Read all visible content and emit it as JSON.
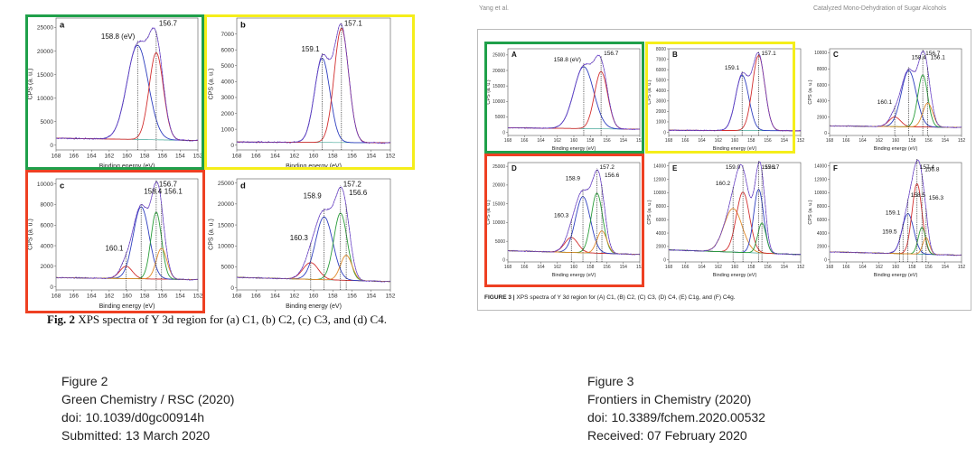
{
  "left_figure": {
    "caption_label": "Fig. 2",
    "caption_text": "XPS spectra of Y 3d region for (a) C1, (b) C2, (c) C3, and (d) C4."
  },
  "right_figure": {
    "header_left": "Yang et al.",
    "header_right": "Catalyzed Mono-Dehydration of Sugar Alcohols",
    "caption_label": "FIGURE 3 |",
    "caption_text": "XPS spectra of Y 3d region for (A) C1, (B) C2, (C) C3, (D) C4, (E) C1g, and (F) C4g."
  },
  "meta_left": {
    "line1": "Figure 2",
    "line2": "Green Chemistry / RSC (2020)",
    "line3": "doi: 10.1039/d0gc00914h",
    "line4": "Submitted: 13 March 2020"
  },
  "meta_right": {
    "line1": "Figure 3",
    "line2": "Frontiers in Chemistry (2020)",
    "line3": "doi: 10.3389/fchem.2020.00532",
    "line4": "Received: 07 February 2020"
  },
  "colors": {
    "highlight_green": "#1fa04a",
    "highlight_yellow": "#f5ee1a",
    "highlight_red": "#ee4022",
    "raw": "#6a3fd0",
    "envelope": "#333333",
    "comp_blue": "#2f3fbf",
    "comp_red": "#d22f2f",
    "comp_green": "#2a9d3a",
    "comp_orange": "#e08a2a",
    "baseline": "#46a89a"
  },
  "chart_data": [
    {
      "id": "left-a",
      "type": "line",
      "panel_letter": "a",
      "xlabel": "Binding energy (eV)",
      "ylabel": "CPS (a. u.)",
      "xlim": [
        168,
        152
      ],
      "xticks": [
        168,
        166,
        164,
        162,
        160,
        158,
        156,
        154,
        152
      ],
      "ylim": [
        -1000,
        27000
      ],
      "yticks": [
        0,
        5000,
        10000,
        15000,
        20000,
        25000
      ],
      "x_reversed": true,
      "peaks": [
        {
          "center": 158.8,
          "label": "158.8 (eV)"
        },
        {
          "center": 156.7,
          "label": "156.7"
        }
      ],
      "components": [
        {
          "color_key": "comp_blue",
          "center": 158.8,
          "amplitude": 20000,
          "width": 1.2
        },
        {
          "color_key": "comp_red",
          "center": 156.7,
          "amplitude": 18500,
          "width": 0.8
        }
      ],
      "background": {
        "left": 1500,
        "right": 1000
      }
    },
    {
      "id": "left-b",
      "type": "line",
      "panel_letter": "b",
      "xlabel": "Binding energy (eV)",
      "ylabel": "CPS (a. u.)",
      "xlim": [
        168,
        152
      ],
      "xticks": [
        168,
        166,
        164,
        162,
        160,
        158,
        156,
        154,
        152
      ],
      "ylim": [
        -300,
        8000
      ],
      "yticks": [
        0,
        1000,
        2000,
        3000,
        4000,
        5000,
        6000,
        7000
      ],
      "x_reversed": true,
      "peaks": [
        {
          "center": 159.1,
          "label": "159.1"
        },
        {
          "center": 157.1,
          "label": "157.1"
        }
      ],
      "components": [
        {
          "color_key": "comp_blue",
          "center": 159.1,
          "amplitude": 5300,
          "width": 0.8
        },
        {
          "color_key": "comp_red",
          "center": 157.1,
          "amplitude": 7200,
          "width": 0.75
        }
      ],
      "background": {
        "left": 200,
        "right": 150
      }
    },
    {
      "id": "left-c",
      "type": "line",
      "panel_letter": "c",
      "xlabel": "Binding energy (eV)",
      "ylabel": "CPS (a. u.)",
      "xlim": [
        168,
        152
      ],
      "xticks": [
        168,
        166,
        164,
        162,
        160,
        158,
        156,
        154,
        152
      ],
      "ylim": [
        -300,
        10500
      ],
      "yticks": [
        0,
        2000,
        4000,
        6000,
        8000,
        10000
      ],
      "x_reversed": true,
      "peaks": [
        {
          "center": 160.1,
          "label": "160.1"
        },
        {
          "center": 158.4,
          "label": "158.4"
        },
        {
          "center": 156.7,
          "label": "156.7"
        },
        {
          "center": 156.1,
          "label": "156.1"
        }
      ],
      "components": [
        {
          "color_key": "comp_red",
          "center": 160.1,
          "amplitude": 1200,
          "width": 0.7
        },
        {
          "color_key": "comp_blue",
          "center": 158.4,
          "amplitude": 7000,
          "width": 0.9
        },
        {
          "color_key": "comp_green",
          "center": 156.7,
          "amplitude": 6500,
          "width": 0.6
        },
        {
          "color_key": "comp_orange",
          "center": 156.1,
          "amplitude": 3000,
          "width": 0.6
        }
      ],
      "background": {
        "left": 900,
        "right": 700
      }
    },
    {
      "id": "left-d",
      "type": "line",
      "panel_letter": "d",
      "xlabel": "Binding energy (eV)",
      "ylabel": "CPS (a. u.)",
      "xlim": [
        168,
        152
      ],
      "xticks": [
        168,
        166,
        164,
        162,
        160,
        158,
        156,
        154,
        152
      ],
      "ylim": [
        -500,
        26000
      ],
      "yticks": [
        0,
        5000,
        10000,
        15000,
        20000,
        25000
      ],
      "x_reversed": true,
      "peaks": [
        {
          "center": 160.3,
          "label": "160.3"
        },
        {
          "center": 158.9,
          "label": "158.9"
        },
        {
          "center": 157.2,
          "label": "157.2"
        },
        {
          "center": 156.6,
          "label": "156.6"
        }
      ],
      "components": [
        {
          "color_key": "comp_red",
          "center": 160.3,
          "amplitude": 4000,
          "width": 0.8
        },
        {
          "color_key": "comp_blue",
          "center": 158.9,
          "amplitude": 15000,
          "width": 0.9
        },
        {
          "color_key": "comp_green",
          "center": 157.2,
          "amplitude": 16000,
          "width": 0.7
        },
        {
          "color_key": "comp_orange",
          "center": 156.6,
          "amplitude": 6000,
          "width": 0.6
        }
      ],
      "background": {
        "left": 2500,
        "right": 1500
      }
    },
    {
      "id": "right-A",
      "type": "line",
      "panel_letter": "A",
      "xlabel": "Binding energy (eV)",
      "ylabel": "CPS (a. u.)",
      "xlim": [
        168,
        152
      ],
      "xticks": [
        168,
        166,
        164,
        162,
        160,
        158,
        156,
        154,
        152
      ],
      "ylim": [
        -1000,
        27000
      ],
      "yticks": [
        0,
        5000,
        10000,
        15000,
        20000,
        25000
      ],
      "x_reversed": true,
      "peaks": [
        {
          "center": 158.8,
          "label": "158.8 (eV)"
        },
        {
          "center": 156.7,
          "label": "156.7"
        }
      ],
      "components": [
        {
          "color_key": "comp_blue",
          "center": 158.8,
          "amplitude": 20000,
          "width": 1.2
        },
        {
          "color_key": "comp_red",
          "center": 156.7,
          "amplitude": 18500,
          "width": 0.8
        }
      ],
      "background": {
        "left": 1500,
        "right": 1000
      }
    },
    {
      "id": "right-B",
      "type": "line",
      "panel_letter": "B",
      "xlabel": "Binding energy (eV)",
      "ylabel": "CPS (a. u.)",
      "xlim": [
        168,
        152
      ],
      "xticks": [
        168,
        166,
        164,
        162,
        160,
        158,
        156,
        154,
        152
      ],
      "ylim": [
        -300,
        8000
      ],
      "yticks": [
        0,
        1000,
        2000,
        3000,
        4000,
        5000,
        6000,
        7000,
        8000
      ],
      "x_reversed": true,
      "peaks": [
        {
          "center": 159.1,
          "label": "159.1"
        },
        {
          "center": 157.1,
          "label": "157.1"
        }
      ],
      "components": [
        {
          "color_key": "comp_blue",
          "center": 159.1,
          "amplitude": 5300,
          "width": 0.8
        },
        {
          "color_key": "comp_red",
          "center": 157.1,
          "amplitude": 7200,
          "width": 0.75
        }
      ],
      "background": {
        "left": 200,
        "right": 150
      }
    },
    {
      "id": "right-C",
      "type": "line",
      "panel_letter": "C",
      "xlabel": "Binding energy (eV)",
      "ylabel": "CPS (a. u.)",
      "xlim": [
        168,
        152
      ],
      "xticks": [
        168,
        166,
        164,
        162,
        160,
        158,
        156,
        154,
        152
      ],
      "ylim": [
        -300,
        10500
      ],
      "yticks": [
        0,
        2000,
        4000,
        6000,
        8000,
        10000
      ],
      "x_reversed": true,
      "peaks": [
        {
          "center": 160.1,
          "label": "160.1"
        },
        {
          "center": 158.4,
          "label": "158.4"
        },
        {
          "center": 156.7,
          "label": "156.7"
        },
        {
          "center": 156.1,
          "label": "156.1"
        }
      ],
      "components": [
        {
          "color_key": "comp_red",
          "center": 160.1,
          "amplitude": 1200,
          "width": 0.7
        },
        {
          "color_key": "comp_blue",
          "center": 158.4,
          "amplitude": 7000,
          "width": 0.9
        },
        {
          "color_key": "comp_green",
          "center": 156.7,
          "amplitude": 6500,
          "width": 0.6
        },
        {
          "color_key": "comp_orange",
          "center": 156.1,
          "amplitude": 3000,
          "width": 0.6
        }
      ],
      "background": {
        "left": 900,
        "right": 700
      }
    },
    {
      "id": "right-D",
      "type": "line",
      "panel_letter": "D",
      "xlabel": "Binding energy (eV)",
      "ylabel": "CPS (a. u.)",
      "xlim": [
        168,
        152
      ],
      "xticks": [
        168,
        166,
        164,
        162,
        160,
        158,
        156,
        154,
        152
      ],
      "ylim": [
        -500,
        26000
      ],
      "yticks": [
        0,
        5000,
        10000,
        15000,
        20000,
        25000
      ],
      "x_reversed": true,
      "peaks": [
        {
          "center": 160.3,
          "label": "160.3"
        },
        {
          "center": 158.9,
          "label": "158.9"
        },
        {
          "center": 157.2,
          "label": "157.2"
        },
        {
          "center": 156.6,
          "label": "156.6"
        }
      ],
      "components": [
        {
          "color_key": "comp_red",
          "center": 160.3,
          "amplitude": 4000,
          "width": 0.8
        },
        {
          "color_key": "comp_blue",
          "center": 158.9,
          "amplitude": 15000,
          "width": 0.9
        },
        {
          "color_key": "comp_green",
          "center": 157.2,
          "amplitude": 16000,
          "width": 0.7
        },
        {
          "color_key": "comp_orange",
          "center": 156.6,
          "amplitude": 6000,
          "width": 0.6
        }
      ],
      "background": {
        "left": 2500,
        "right": 1500
      }
    },
    {
      "id": "right-E",
      "type": "line",
      "panel_letter": "E",
      "xlabel": "Binding energy (eV)",
      "ylabel": "CPS (a. u.)",
      "xlim": [
        168,
        152
      ],
      "xticks": [
        168,
        166,
        164,
        162,
        160,
        158,
        156,
        154,
        152
      ],
      "ylim": [
        -300,
        14500
      ],
      "yticks": [
        0,
        2000,
        4000,
        6000,
        8000,
        10000,
        12000,
        14000
      ],
      "x_reversed": true,
      "peaks": [
        {
          "center": 160.2,
          "label": "160.2"
        },
        {
          "center": 159.0,
          "label": "159.0"
        },
        {
          "center": 157.1,
          "label": "157.1"
        },
        {
          "center": 156.7,
          "label": "156.7"
        }
      ],
      "components": [
        {
          "color_key": "comp_orange",
          "center": 160.2,
          "amplitude": 6500,
          "width": 1.1
        },
        {
          "color_key": "comp_red",
          "center": 159.0,
          "amplitude": 9000,
          "width": 0.8
        },
        {
          "color_key": "comp_blue",
          "center": 157.1,
          "amplitude": 9500,
          "width": 0.6
        },
        {
          "color_key": "comp_green",
          "center": 156.7,
          "amplitude": 4500,
          "width": 0.5
        }
      ],
      "background": {
        "left": 1500,
        "right": 800
      }
    },
    {
      "id": "right-F",
      "type": "line",
      "panel_letter": "F",
      "xlabel": "Binding energy (eV)",
      "ylabel": "CPS (a. u.)",
      "xlim": [
        168,
        152
      ],
      "xticks": [
        168,
        166,
        164,
        162,
        160,
        158,
        156,
        154,
        152
      ],
      "ylim": [
        -300,
        14500
      ],
      "yticks": [
        0,
        2000,
        4000,
        6000,
        8000,
        10000,
        12000,
        14000
      ],
      "x_reversed": true,
      "peaks": [
        {
          "center": 159.5,
          "label": "159.5"
        },
        {
          "center": 159.1,
          "label": "159.1"
        },
        {
          "center": 158.5,
          "label": "158.5"
        },
        {
          "center": 157.4,
          "label": "157.4"
        },
        {
          "center": 156.8,
          "label": "156.8"
        },
        {
          "center": 156.3,
          "label": "156.3"
        }
      ],
      "components": [
        {
          "color_key": "comp_blue",
          "center": 158.5,
          "amplitude": 6000,
          "width": 0.7
        },
        {
          "color_key": "comp_red",
          "center": 157.4,
          "amplitude": 10500,
          "width": 0.6
        },
        {
          "color_key": "comp_green",
          "center": 156.8,
          "amplitude": 4000,
          "width": 0.45
        },
        {
          "color_key": "comp_orange",
          "center": 156.3,
          "amplitude": 2500,
          "width": 0.4
        }
      ],
      "background": {
        "left": 1200,
        "right": 700
      }
    }
  ]
}
